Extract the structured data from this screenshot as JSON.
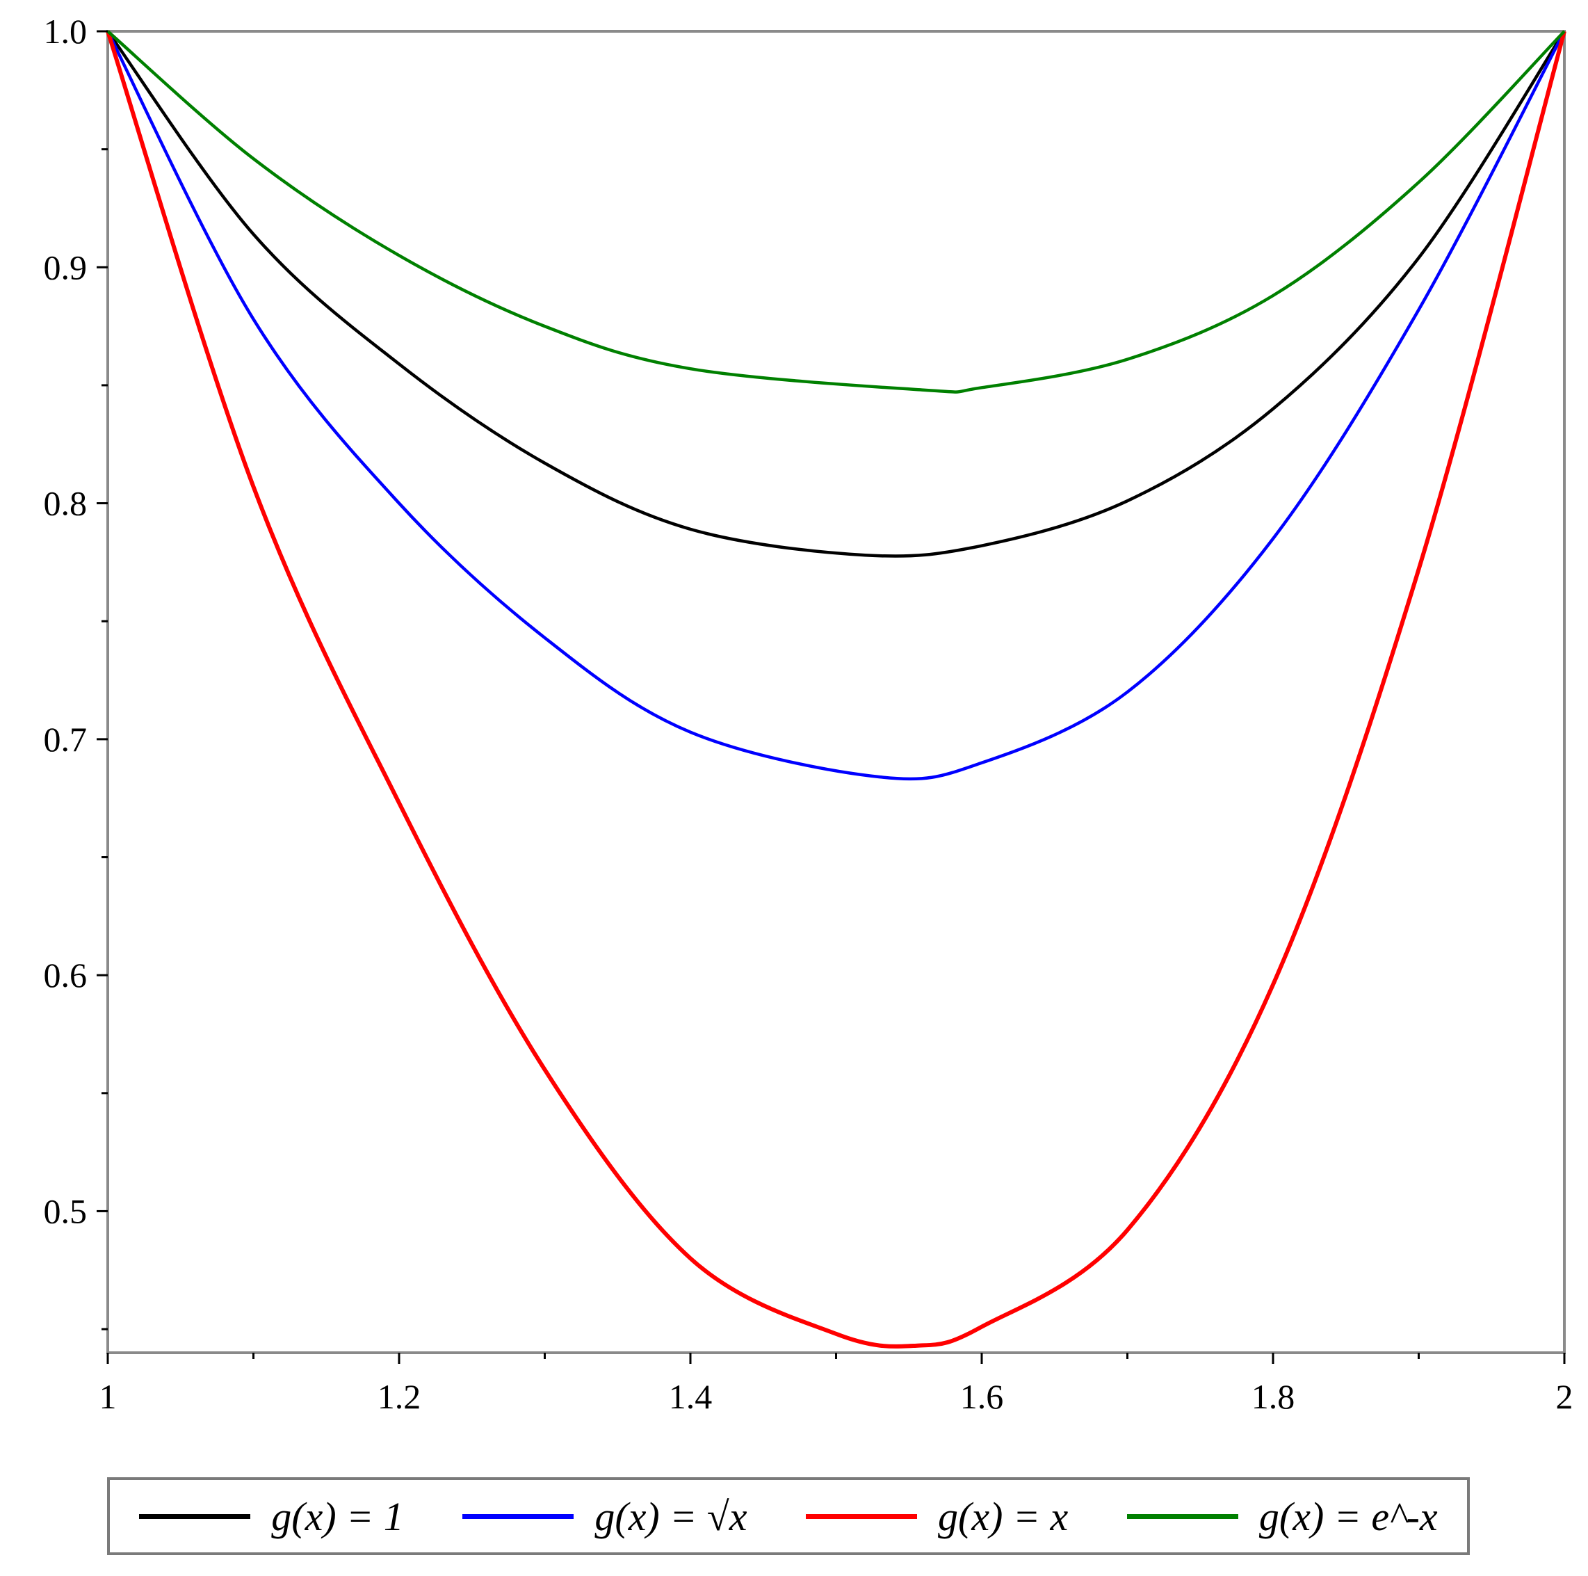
{
  "chart_data": {
    "type": "line",
    "title": "",
    "xlabel": "",
    "ylabel": "",
    "xlim": [
      1,
      2
    ],
    "ylim": [
      0.44,
      1.0
    ],
    "x_ticks": [
      1,
      1.2,
      1.4,
      1.6,
      1.8,
      2
    ],
    "x_tick_labels": [
      "1",
      "1.2",
      "1.4",
      "1.6",
      "1.8",
      "2"
    ],
    "y_ticks": [
      0.5,
      0.6,
      0.7,
      0.8,
      0.9,
      1.0
    ],
    "y_tick_labels": [
      "0.5",
      "0.6",
      "0.7",
      "0.8",
      "0.9",
      "1.0"
    ],
    "grid": false,
    "legend_position": "bottom",
    "series": [
      {
        "name": "g(x) = 1",
        "color": "#000000",
        "x": [
          1,
          1.1,
          1.2,
          1.3,
          1.4,
          1.52,
          1.6,
          1.7,
          1.8,
          1.9,
          2
        ],
        "y": [
          1.0,
          0.914,
          0.859,
          0.817,
          0.789,
          0.778,
          0.782,
          0.801,
          0.84,
          0.904,
          1.0
        ]
      },
      {
        "name": "g(x) = √x",
        "color": "#0000ff",
        "x": [
          1,
          1.1,
          1.2,
          1.3,
          1.4,
          1.53,
          1.6,
          1.7,
          1.8,
          1.9,
          2
        ],
        "y": [
          1.0,
          0.878,
          0.8,
          0.743,
          0.703,
          0.684,
          0.69,
          0.72,
          0.785,
          0.882,
          1.0
        ]
      },
      {
        "name": "g(x) = x",
        "color": "#ff0000",
        "x": [
          1,
          1.1,
          1.2,
          1.3,
          1.4,
          1.5,
          1.555,
          1.6,
          1.7,
          1.8,
          1.9,
          2
        ],
        "y": [
          1.0,
          0.807,
          0.673,
          0.56,
          0.48,
          0.448,
          0.443,
          0.451,
          0.492,
          0.596,
          0.772,
          1.0
        ]
      },
      {
        "name": "g(x) = e^-x",
        "color": "#008000",
        "x": [
          1,
          1.1,
          1.2,
          1.3,
          1.4,
          1.56,
          1.6,
          1.7,
          1.8,
          1.9,
          2
        ],
        "y": [
          1.0,
          0.946,
          0.905,
          0.875,
          0.857,
          0.848,
          0.849,
          0.861,
          0.888,
          0.936,
          1.0
        ]
      }
    ]
  },
  "legend": {
    "items": [
      {
        "label": "g(x) = 1",
        "color": "#000000"
      },
      {
        "label": "g(x) = √x",
        "color": "#0000ff"
      },
      {
        "label": "g(x) = x",
        "color": "#ff0000"
      },
      {
        "label": "g(x) = e^-x",
        "color": "#008000"
      }
    ]
  }
}
